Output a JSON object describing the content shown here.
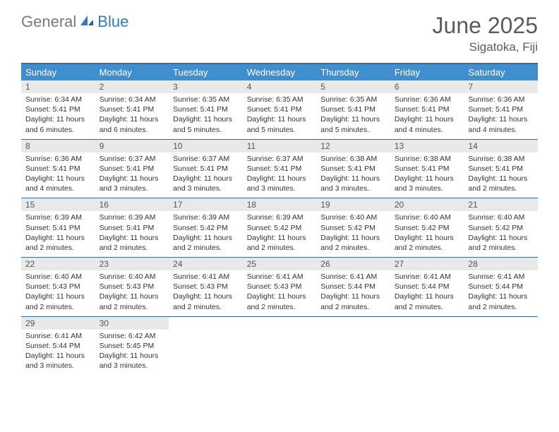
{
  "logo": {
    "text1": "General",
    "text2": "Blue"
  },
  "title": "June 2025",
  "location": "Sigatoka, Fiji",
  "colors": {
    "header_bar": "#3f8fce",
    "border": "#3a6a9a",
    "daynum_bg": "#e9e9e9",
    "logo_gray": "#7a7a7a",
    "logo_blue": "#2f7bbf",
    "title_color": "#5b5b5b"
  },
  "weekdays": [
    "Sunday",
    "Monday",
    "Tuesday",
    "Wednesday",
    "Thursday",
    "Friday",
    "Saturday"
  ],
  "first_weekday_index": 0,
  "days": [
    {
      "n": 1,
      "sunrise": "6:34 AM",
      "sunset": "5:41 PM",
      "daylight": "11 hours and 6 minutes."
    },
    {
      "n": 2,
      "sunrise": "6:34 AM",
      "sunset": "5:41 PM",
      "daylight": "11 hours and 6 minutes."
    },
    {
      "n": 3,
      "sunrise": "6:35 AM",
      "sunset": "5:41 PM",
      "daylight": "11 hours and 5 minutes."
    },
    {
      "n": 4,
      "sunrise": "6:35 AM",
      "sunset": "5:41 PM",
      "daylight": "11 hours and 5 minutes."
    },
    {
      "n": 5,
      "sunrise": "6:35 AM",
      "sunset": "5:41 PM",
      "daylight": "11 hours and 5 minutes."
    },
    {
      "n": 6,
      "sunrise": "6:36 AM",
      "sunset": "5:41 PM",
      "daylight": "11 hours and 4 minutes."
    },
    {
      "n": 7,
      "sunrise": "6:36 AM",
      "sunset": "5:41 PM",
      "daylight": "11 hours and 4 minutes."
    },
    {
      "n": 8,
      "sunrise": "6:36 AM",
      "sunset": "5:41 PM",
      "daylight": "11 hours and 4 minutes."
    },
    {
      "n": 9,
      "sunrise": "6:37 AM",
      "sunset": "5:41 PM",
      "daylight": "11 hours and 3 minutes."
    },
    {
      "n": 10,
      "sunrise": "6:37 AM",
      "sunset": "5:41 PM",
      "daylight": "11 hours and 3 minutes."
    },
    {
      "n": 11,
      "sunrise": "6:37 AM",
      "sunset": "5:41 PM",
      "daylight": "11 hours and 3 minutes."
    },
    {
      "n": 12,
      "sunrise": "6:38 AM",
      "sunset": "5:41 PM",
      "daylight": "11 hours and 3 minutes."
    },
    {
      "n": 13,
      "sunrise": "6:38 AM",
      "sunset": "5:41 PM",
      "daylight": "11 hours and 3 minutes."
    },
    {
      "n": 14,
      "sunrise": "6:38 AM",
      "sunset": "5:41 PM",
      "daylight": "11 hours and 2 minutes."
    },
    {
      "n": 15,
      "sunrise": "6:39 AM",
      "sunset": "5:41 PM",
      "daylight": "11 hours and 2 minutes."
    },
    {
      "n": 16,
      "sunrise": "6:39 AM",
      "sunset": "5:41 PM",
      "daylight": "11 hours and 2 minutes."
    },
    {
      "n": 17,
      "sunrise": "6:39 AM",
      "sunset": "5:42 PM",
      "daylight": "11 hours and 2 minutes."
    },
    {
      "n": 18,
      "sunrise": "6:39 AM",
      "sunset": "5:42 PM",
      "daylight": "11 hours and 2 minutes."
    },
    {
      "n": 19,
      "sunrise": "6:40 AM",
      "sunset": "5:42 PM",
      "daylight": "11 hours and 2 minutes."
    },
    {
      "n": 20,
      "sunrise": "6:40 AM",
      "sunset": "5:42 PM",
      "daylight": "11 hours and 2 minutes."
    },
    {
      "n": 21,
      "sunrise": "6:40 AM",
      "sunset": "5:42 PM",
      "daylight": "11 hours and 2 minutes."
    },
    {
      "n": 22,
      "sunrise": "6:40 AM",
      "sunset": "5:43 PM",
      "daylight": "11 hours and 2 minutes."
    },
    {
      "n": 23,
      "sunrise": "6:40 AM",
      "sunset": "5:43 PM",
      "daylight": "11 hours and 2 minutes."
    },
    {
      "n": 24,
      "sunrise": "6:41 AM",
      "sunset": "5:43 PM",
      "daylight": "11 hours and 2 minutes."
    },
    {
      "n": 25,
      "sunrise": "6:41 AM",
      "sunset": "5:43 PM",
      "daylight": "11 hours and 2 minutes."
    },
    {
      "n": 26,
      "sunrise": "6:41 AM",
      "sunset": "5:44 PM",
      "daylight": "11 hours and 2 minutes."
    },
    {
      "n": 27,
      "sunrise": "6:41 AM",
      "sunset": "5:44 PM",
      "daylight": "11 hours and 2 minutes."
    },
    {
      "n": 28,
      "sunrise": "6:41 AM",
      "sunset": "5:44 PM",
      "daylight": "11 hours and 2 minutes."
    },
    {
      "n": 29,
      "sunrise": "6:41 AM",
      "sunset": "5:44 PM",
      "daylight": "11 hours and 3 minutes."
    },
    {
      "n": 30,
      "sunrise": "6:42 AM",
      "sunset": "5:45 PM",
      "daylight": "11 hours and 3 minutes."
    }
  ],
  "labels": {
    "sunrise": "Sunrise:",
    "sunset": "Sunset:",
    "daylight": "Daylight:"
  }
}
